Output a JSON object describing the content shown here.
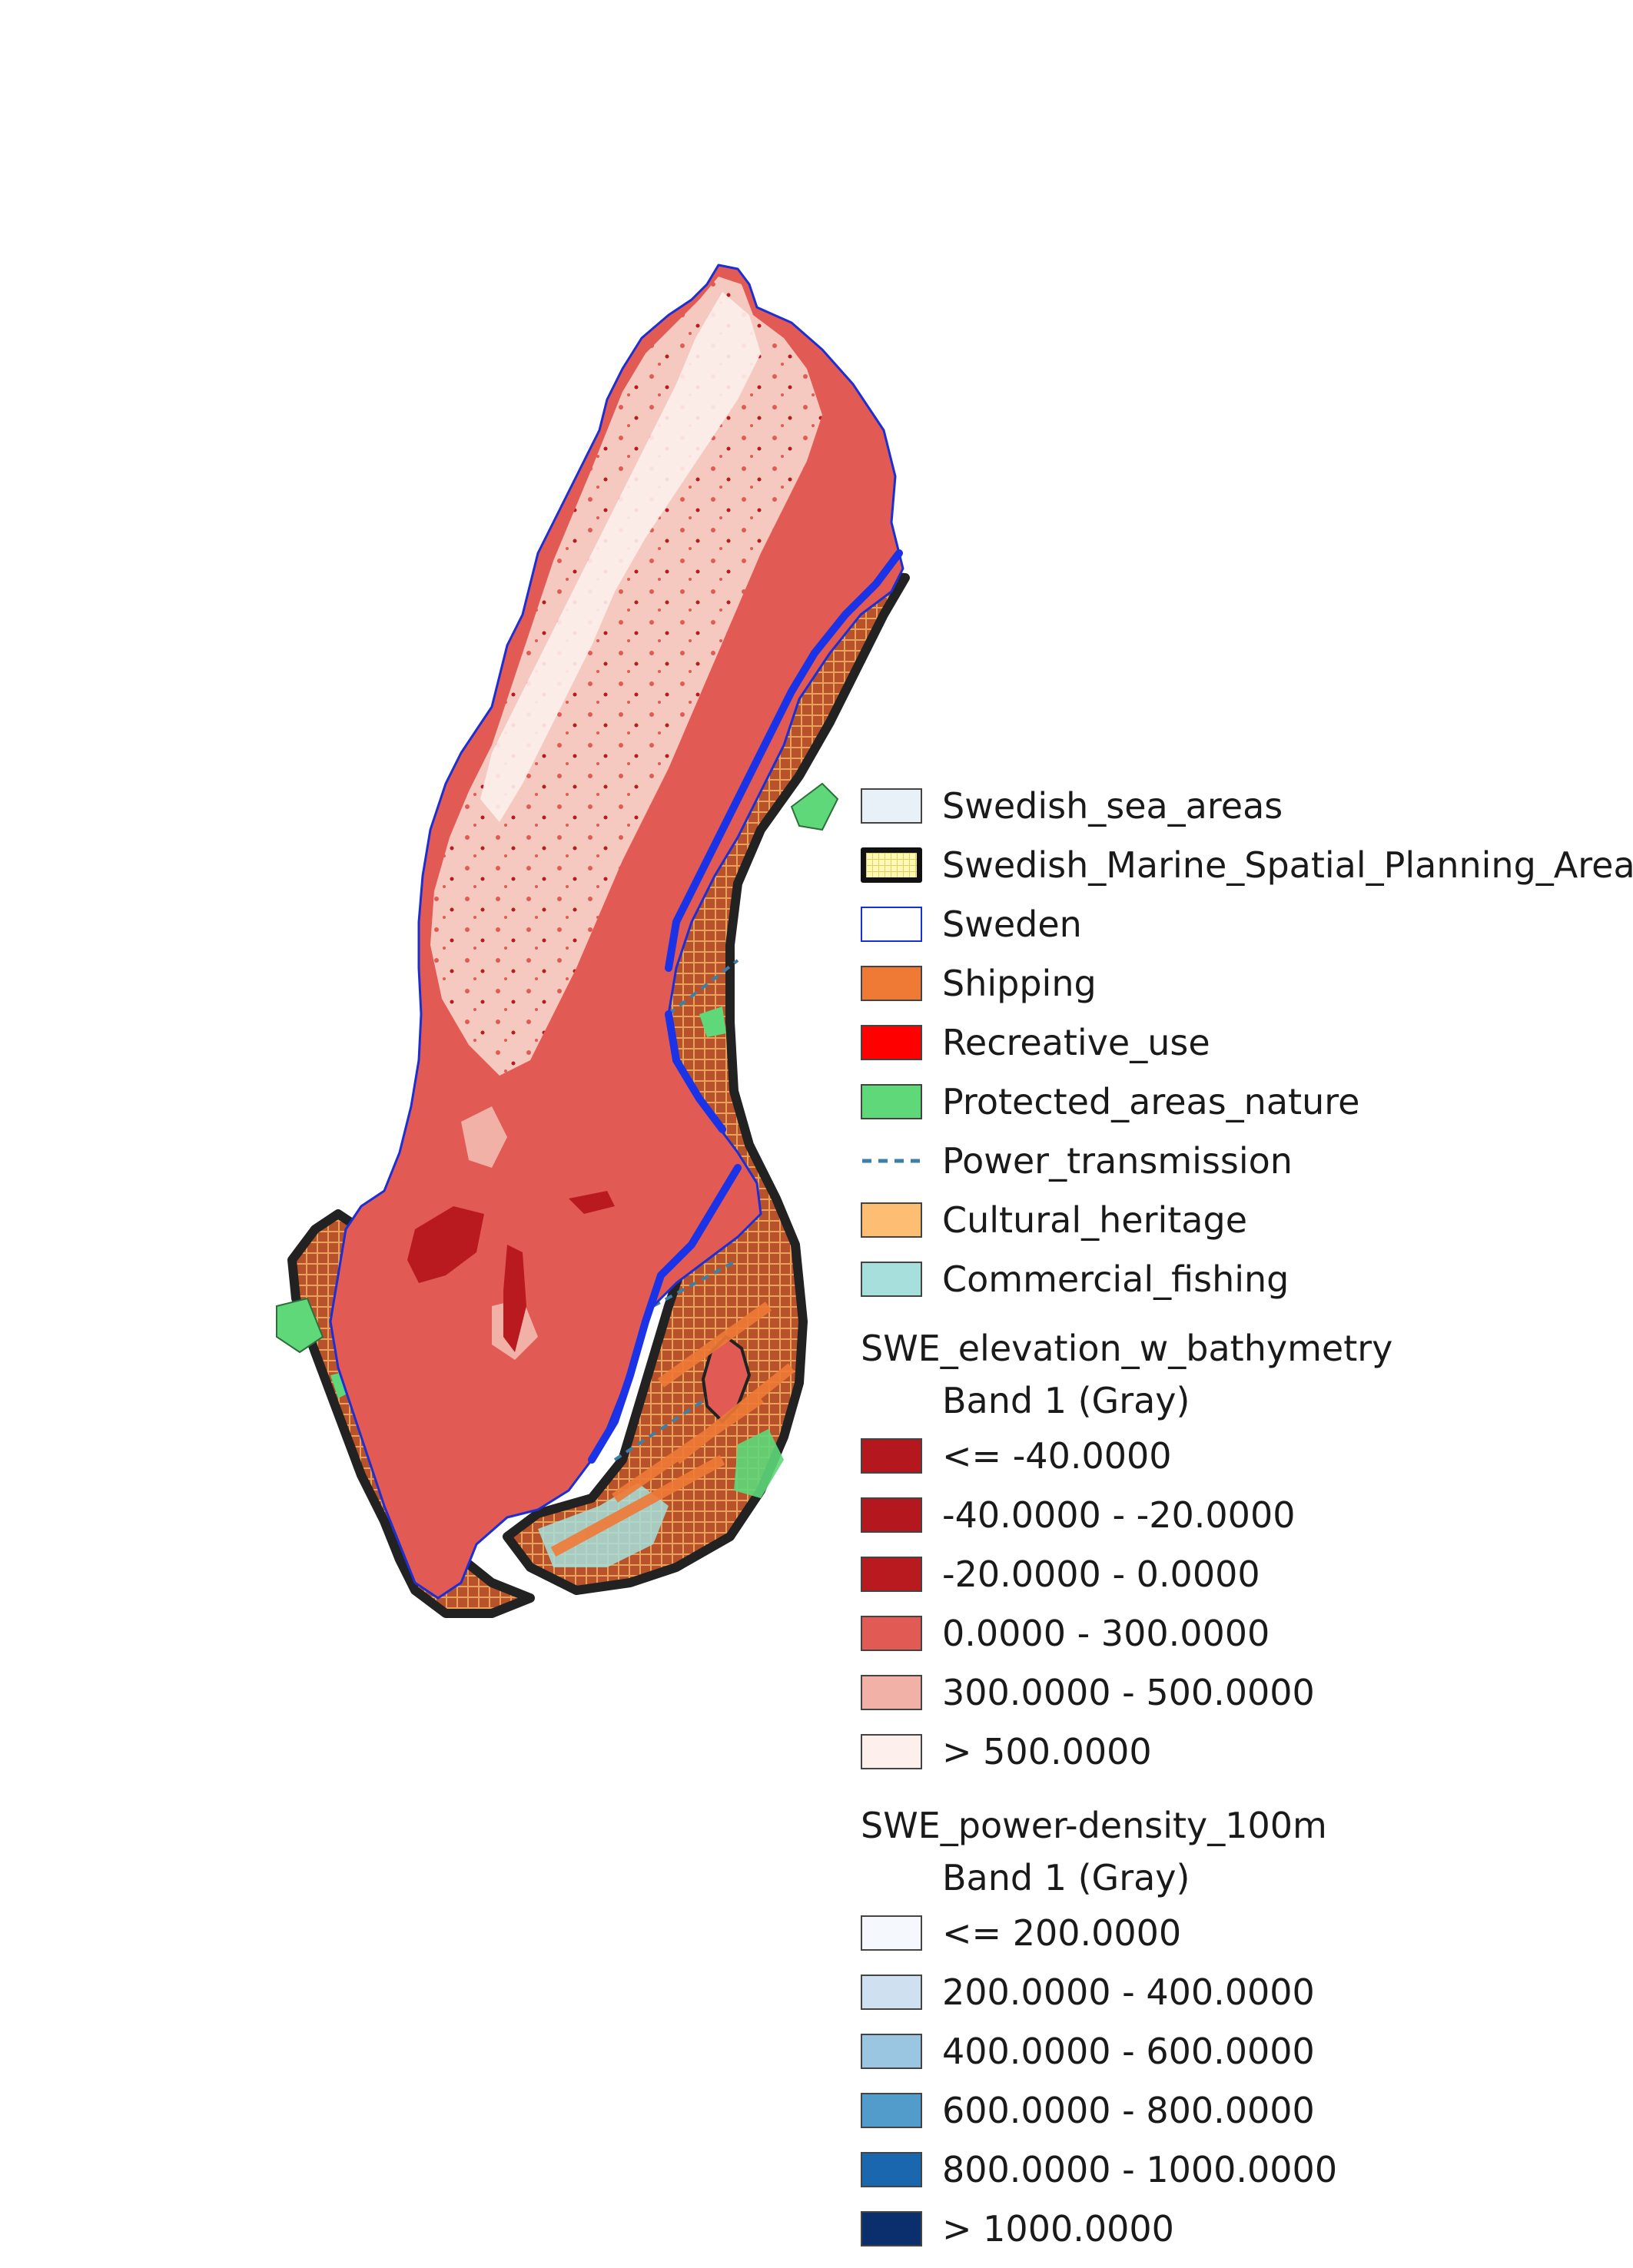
{
  "legend": {
    "layers": [
      {
        "label": "Swedish_sea_areas",
        "fill": "#e8f1f8",
        "stroke": "#444444",
        "style": "box"
      },
      {
        "label": "Swedish_Marine_Spatial_Planning_Area",
        "fill": "#fff9b8",
        "stroke": "#111111",
        "style": "thick-hatch"
      },
      {
        "label": "Sweden",
        "fill": "#ffffff",
        "stroke": "#1a2fd6",
        "style": "outline"
      },
      {
        "label": "Shipping",
        "fill": "#ef7a36",
        "stroke": "#444444",
        "style": "box"
      },
      {
        "label": "Recreative_use",
        "fill": "#ff0000",
        "stroke": "#444444",
        "style": "box"
      },
      {
        "label": "Protected_areas_nature",
        "fill": "#5ed879",
        "stroke": "#444444",
        "style": "box"
      },
      {
        "label": "Power_transmission",
        "fill": "#3e7fa8",
        "stroke": "#3e7fa8",
        "style": "dashed-line"
      },
      {
        "label": "Cultural_heritage",
        "fill": "#fdbd72",
        "stroke": "#444444",
        "style": "box"
      },
      {
        "label": "Commercial_fishing",
        "fill": "#a6dfdc",
        "stroke": "#444444",
        "style": "box"
      }
    ],
    "elevation": {
      "title": "SWE_elevation_w_bathymetry",
      "band": "Band 1 (Gray)",
      "classes": [
        {
          "label": "<= -40.0000",
          "color": "#b5171e"
        },
        {
          "label": "-40.0000 - -20.0000",
          "color": "#b5171e"
        },
        {
          "label": "-20.0000 - 0.0000",
          "color": "#b81a20"
        },
        {
          "label": "0.0000 - 300.0000",
          "color": "#e25a54"
        },
        {
          "label": "300.0000 - 500.0000",
          "color": "#f2b1a7"
        },
        {
          "label": "> 500.0000",
          "color": "#fdf0ec"
        }
      ]
    },
    "power_density": {
      "title": "SWE_power-density_100m",
      "band": "Band 1 (Gray)",
      "classes": [
        {
          "label": "<= 200.0000",
          "color": "#f5f9fd"
        },
        {
          "label": "200.0000 - 400.0000",
          "color": "#cfe0f0"
        },
        {
          "label": "400.0000 - 600.0000",
          "color": "#9ac6e1"
        },
        {
          "label": "600.0000 - 800.0000",
          "color": "#529ccb"
        },
        {
          "label": "800.0000 - 1000.0000",
          "color": "#1a67b0"
        },
        {
          "label": "> 1000.0000",
          "color": "#0a2f6c"
        }
      ]
    }
  },
  "colors": {
    "land_main": "#e25a54",
    "land_high": "#f2b1a7",
    "land_peak": "#fdf0ec",
    "lakes": "#b81a20",
    "coast_blue": "#1a2fd6",
    "msp_outline": "#222222",
    "shipping": "#c8642c",
    "protected": "#5ed879",
    "fishing": "#a6dfdc"
  }
}
